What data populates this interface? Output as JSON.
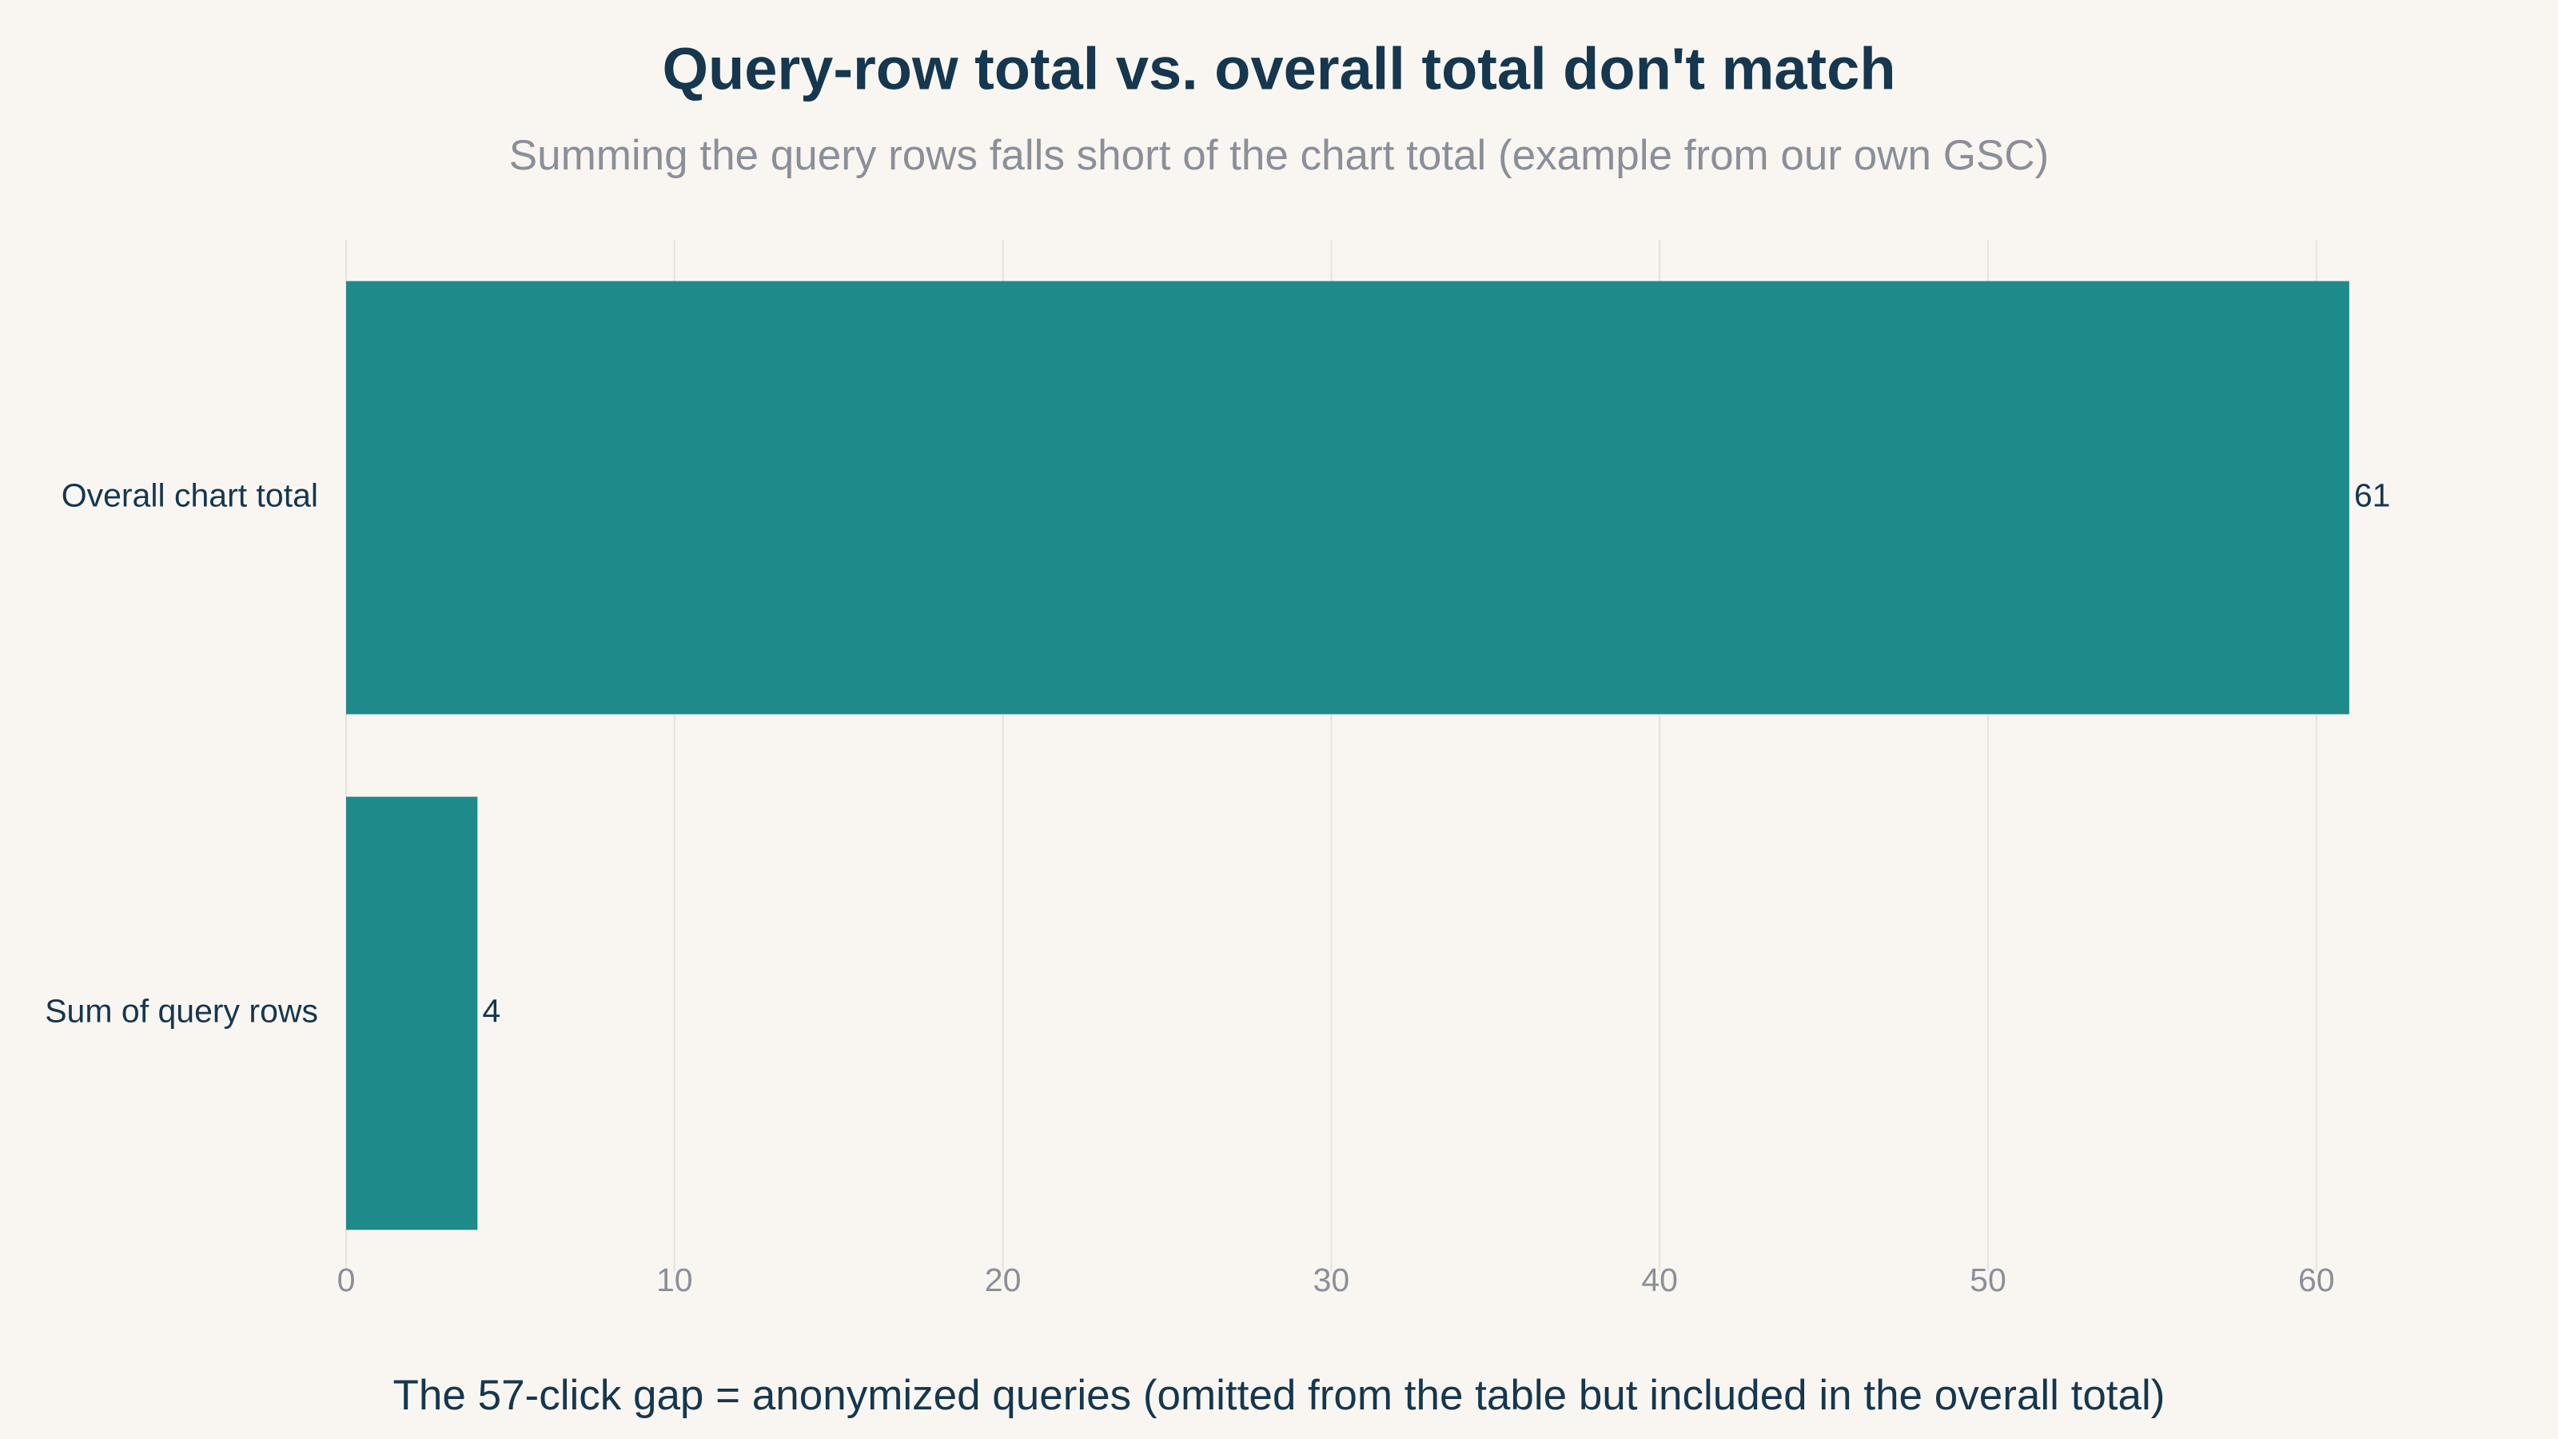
{
  "chart_data": {
    "type": "hbar",
    "title": "Query-row total vs. overall total don't match",
    "subtitle": "Summing the query rows falls short of the chart total (example from our own GSC)",
    "x_label": "The 57-click gap = anonymized queries (omitted from the table but included in the overall total)",
    "categories": [
      "Overall chart total",
      "Sum of query rows"
    ],
    "values": [
      61,
      4
    ],
    "color": "#1f8a8a",
    "xlim": [
      0,
      63
    ],
    "xticks": [
      0,
      10,
      20,
      30,
      40,
      50,
      60
    ],
    "grid": true
  }
}
